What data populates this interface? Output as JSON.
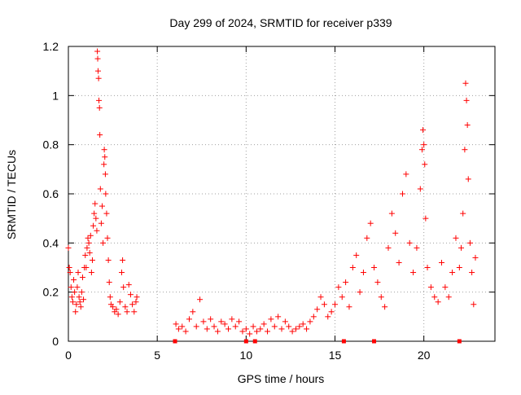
{
  "chart_data": {
    "type": "scatter",
    "title": "Day 299 of 2024, SRMTID for receiver p339",
    "xlabel": "GPS time / hours",
    "ylabel": "SRMTID / TECUs",
    "xlim": [
      0,
      24
    ],
    "ylim": [
      0,
      1.2
    ],
    "xticks": [
      0,
      5,
      10,
      15,
      20
    ],
    "xtick_labels": [
      "0",
      "5",
      "10",
      "15",
      "20"
    ],
    "yticks": [
      0,
      0.2,
      0.4,
      0.6,
      0.8,
      1.0,
      1.2
    ],
    "ytick_labels": [
      "0",
      "0.2",
      "0.4",
      "0.6",
      "0.8",
      "1",
      "1.2"
    ],
    "grid": true,
    "marker": "plus",
    "series": [
      {
        "name": "SRMTID",
        "color": "#ff0000",
        "points": [
          [
            0.0,
            0.38
          ],
          [
            0.05,
            0.3
          ],
          [
            0.1,
            0.28
          ],
          [
            0.15,
            0.22
          ],
          [
            0.2,
            0.18
          ],
          [
            0.25,
            0.16
          ],
          [
            0.3,
            0.25
          ],
          [
            0.35,
            0.2
          ],
          [
            0.4,
            0.12
          ],
          [
            0.45,
            0.15
          ],
          [
            0.5,
            0.22
          ],
          [
            0.55,
            0.28
          ],
          [
            0.6,
            0.18
          ],
          [
            0.65,
            0.16
          ],
          [
            0.7,
            0.14
          ],
          [
            0.75,
            0.2
          ],
          [
            0.8,
            0.26
          ],
          [
            0.85,
            0.17
          ],
          [
            0.9,
            0.3
          ],
          [
            0.95,
            0.35
          ],
          [
            1.0,
            0.3
          ],
          [
            1.05,
            0.38
          ],
          [
            1.1,
            0.42
          ],
          [
            1.15,
            0.4
          ],
          [
            1.2,
            0.36
          ],
          [
            1.25,
            0.43
          ],
          [
            1.3,
            0.28
          ],
          [
            1.35,
            0.33
          ],
          [
            1.4,
            0.47
          ],
          [
            1.45,
            0.52
          ],
          [
            1.5,
            0.56
          ],
          [
            1.55,
            0.5
          ],
          [
            1.6,
            0.45
          ],
          [
            1.63,
            1.18
          ],
          [
            1.65,
            1.15
          ],
          [
            1.67,
            1.1
          ],
          [
            1.7,
            1.07
          ],
          [
            1.72,
            0.98
          ],
          [
            1.75,
            0.95
          ],
          [
            1.77,
            0.84
          ],
          [
            1.8,
            0.62
          ],
          [
            1.85,
            0.48
          ],
          [
            1.9,
            0.55
          ],
          [
            1.95,
            0.4
          ],
          [
            2.0,
            0.72
          ],
          [
            2.02,
            0.78
          ],
          [
            2.05,
            0.75
          ],
          [
            2.08,
            0.68
          ],
          [
            2.1,
            0.6
          ],
          [
            2.15,
            0.52
          ],
          [
            2.2,
            0.42
          ],
          [
            2.25,
            0.33
          ],
          [
            2.3,
            0.24
          ],
          [
            2.35,
            0.18
          ],
          [
            2.4,
            0.15
          ],
          [
            2.5,
            0.14
          ],
          [
            2.6,
            0.12
          ],
          [
            2.7,
            0.13
          ],
          [
            2.8,
            0.11
          ],
          [
            2.9,
            0.16
          ],
          [
            3.0,
            0.28
          ],
          [
            3.05,
            0.33
          ],
          [
            3.1,
            0.22
          ],
          [
            3.2,
            0.14
          ],
          [
            3.3,
            0.12
          ],
          [
            3.4,
            0.23
          ],
          [
            3.5,
            0.19
          ],
          [
            3.6,
            0.15
          ],
          [
            3.7,
            0.12
          ],
          [
            3.8,
            0.16
          ],
          [
            3.85,
            0.18
          ],
          [
            6.05,
            0.07
          ],
          [
            6.2,
            0.05
          ],
          [
            6.4,
            0.06
          ],
          [
            6.6,
            0.04
          ],
          [
            6.8,
            0.09
          ],
          [
            7.0,
            0.12
          ],
          [
            7.2,
            0.06
          ],
          [
            7.4,
            0.17
          ],
          [
            7.6,
            0.08
          ],
          [
            7.8,
            0.05
          ],
          [
            8.0,
            0.09
          ],
          [
            8.2,
            0.06
          ],
          [
            8.4,
            0.04
          ],
          [
            8.6,
            0.08
          ],
          [
            8.8,
            0.07
          ],
          [
            9.0,
            0.05
          ],
          [
            9.2,
            0.09
          ],
          [
            9.4,
            0.06
          ],
          [
            9.6,
            0.08
          ],
          [
            9.8,
            0.04
          ],
          [
            10.0,
            0.05
          ],
          [
            10.2,
            0.03
          ],
          [
            10.4,
            0.06
          ],
          [
            10.6,
            0.04
          ],
          [
            10.8,
            0.05
          ],
          [
            11.0,
            0.07
          ],
          [
            11.2,
            0.04
          ],
          [
            11.4,
            0.09
          ],
          [
            11.6,
            0.06
          ],
          [
            11.8,
            0.1
          ],
          [
            12.0,
            0.05
          ],
          [
            12.2,
            0.08
          ],
          [
            12.4,
            0.06
          ],
          [
            12.6,
            0.04
          ],
          [
            12.8,
            0.05
          ],
          [
            13.0,
            0.06
          ],
          [
            13.2,
            0.07
          ],
          [
            13.4,
            0.05
          ],
          [
            13.6,
            0.08
          ],
          [
            13.8,
            0.1
          ],
          [
            14.0,
            0.13
          ],
          [
            14.2,
            0.18
          ],
          [
            14.4,
            0.15
          ],
          [
            14.6,
            0.1
          ],
          [
            14.8,
            0.12
          ],
          [
            15.0,
            0.15
          ],
          [
            15.2,
            0.22
          ],
          [
            15.4,
            0.18
          ],
          [
            15.6,
            0.24
          ],
          [
            15.8,
            0.14
          ],
          [
            16.0,
            0.3
          ],
          [
            16.2,
            0.35
          ],
          [
            16.4,
            0.2
          ],
          [
            16.6,
            0.28
          ],
          [
            16.8,
            0.42
          ],
          [
            17.0,
            0.48
          ],
          [
            17.2,
            0.3
          ],
          [
            17.4,
            0.24
          ],
          [
            17.6,
            0.18
          ],
          [
            17.8,
            0.14
          ],
          [
            18.0,
            0.38
          ],
          [
            18.2,
            0.52
          ],
          [
            18.4,
            0.44
          ],
          [
            18.6,
            0.32
          ],
          [
            18.8,
            0.6
          ],
          [
            19.0,
            0.68
          ],
          [
            19.2,
            0.4
          ],
          [
            19.4,
            0.28
          ],
          [
            19.6,
            0.38
          ],
          [
            19.8,
            0.62
          ],
          [
            19.9,
            0.78
          ],
          [
            19.95,
            0.86
          ],
          [
            20.0,
            0.8
          ],
          [
            20.05,
            0.72
          ],
          [
            20.1,
            0.5
          ],
          [
            20.2,
            0.3
          ],
          [
            20.4,
            0.22
          ],
          [
            20.6,
            0.18
          ],
          [
            20.8,
            0.16
          ],
          [
            21.0,
            0.32
          ],
          [
            21.2,
            0.22
          ],
          [
            21.4,
            0.18
          ],
          [
            21.6,
            0.28
          ],
          [
            21.8,
            0.42
          ],
          [
            22.0,
            0.3
          ],
          [
            22.1,
            0.38
          ],
          [
            22.2,
            0.52
          ],
          [
            22.3,
            0.78
          ],
          [
            22.35,
            1.05
          ],
          [
            22.4,
            0.98
          ],
          [
            22.45,
            0.88
          ],
          [
            22.5,
            0.66
          ],
          [
            22.6,
            0.4
          ],
          [
            22.7,
            0.28
          ],
          [
            22.8,
            0.15
          ],
          [
            22.9,
            0.34
          ]
        ]
      }
    ],
    "gap_markers": {
      "color": "#ff0000",
      "x": [
        6.0,
        10.0,
        10.5,
        15.5,
        17.2,
        22.0
      ]
    }
  }
}
